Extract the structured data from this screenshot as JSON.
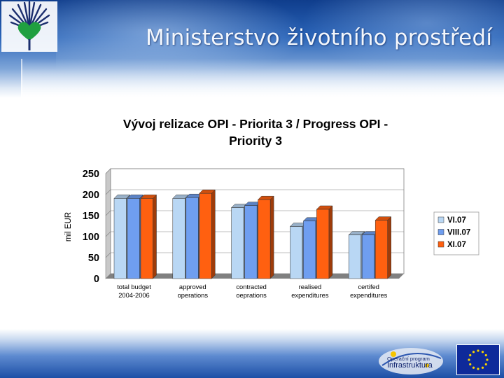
{
  "header": {
    "ministry_name": "Ministerstvo životního prostředí",
    "logo_icon": "heart-tree-logo-icon"
  },
  "footer": {
    "program_line1": "Operační program",
    "program_line2": "Infrastruktura",
    "eu_flag_icon": "eu-flag-icon"
  },
  "chart_data": {
    "type": "bar",
    "title_line1": "Vývoj relizace OPI - Priorita 3 / Progress OPI -",
    "title_line2": "Priority 3",
    "ylabel": "mil EUR",
    "xlabel": "",
    "ylim": [
      0,
      250
    ],
    "yticks": [
      0,
      50,
      100,
      150,
      200,
      250
    ],
    "grid": true,
    "legend_position": "right",
    "categories": [
      [
        "total budget",
        "2004-2006"
      ],
      [
        "approved",
        "operations"
      ],
      [
        "contracted",
        "oeprations"
      ],
      [
        "realised",
        "expenditures"
      ],
      [
        "certifed",
        "expenditures"
      ]
    ],
    "series": [
      {
        "name": "VI.07",
        "color": "#b9d7f4",
        "values": [
          191,
          191,
          169,
          124,
          104
        ]
      },
      {
        "name": "VIII.07",
        "color": "#6f9ef0",
        "values": [
          191,
          193,
          174,
          137,
          104
        ]
      },
      {
        "name": "XI.07",
        "color": "#ff6010",
        "values": [
          191,
          203,
          188,
          165,
          139
        ]
      }
    ]
  }
}
